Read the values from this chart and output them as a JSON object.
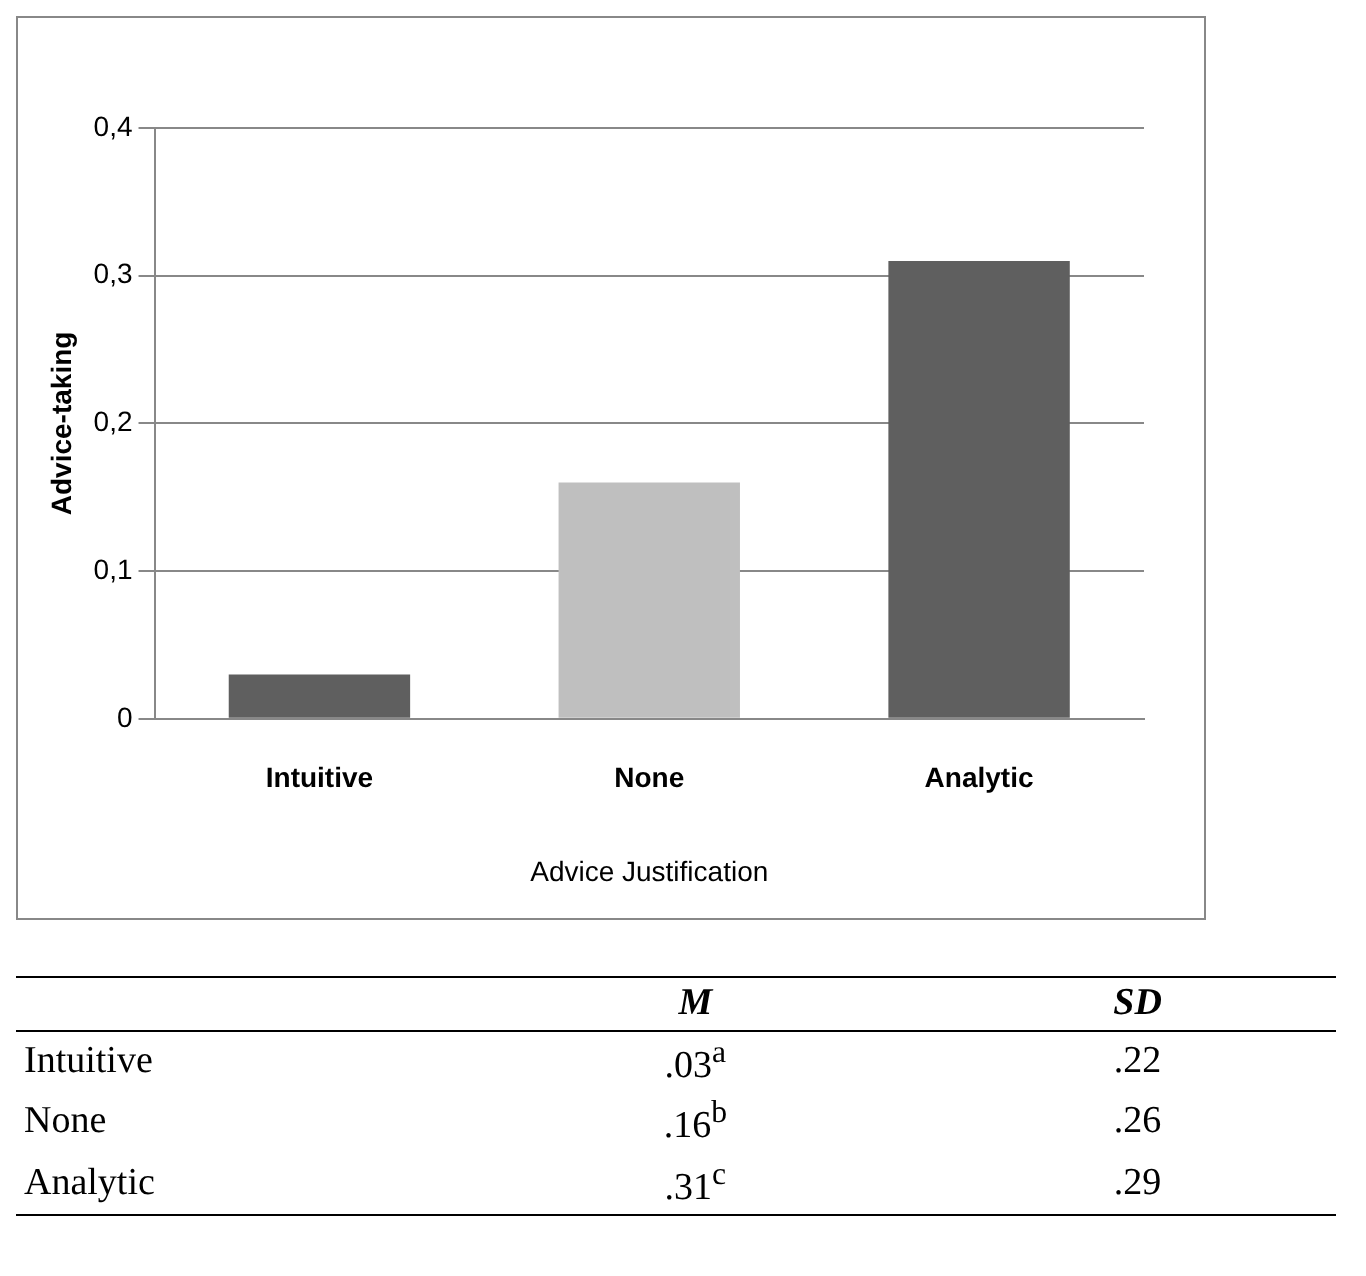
{
  "chart_data": {
    "type": "bar",
    "xlabel": "Advice Justification",
    "ylabel": "Advice-taking",
    "categories": [
      "Intuitive",
      "None",
      "Analytic"
    ],
    "values": [
      0.03,
      0.16,
      0.31
    ],
    "colors": [
      "#5f5f5f",
      "#bfbfbf",
      "#5f5f5f"
    ],
    "annotations": [
      "M",
      "SD",
      ".03$^{a}$",
      ".22",
      ".16$^{b}$",
      ".26",
      ".31$^{c}$",
      ".29"
    ],
    "ylim": [
      0,
      0.4
    ],
    "yticks": [
      {
        "value": 0,
        "label": "0"
      },
      {
        "value": 0.1,
        "label": "0,1"
      },
      {
        "value": 0.2,
        "label": "0,2"
      },
      {
        "value": 0.3,
        "label": "0,3"
      },
      {
        "value": 0.4,
        "label": "0,4"
      }
    ],
    "grid": "y",
    "legend": false
  }
}
